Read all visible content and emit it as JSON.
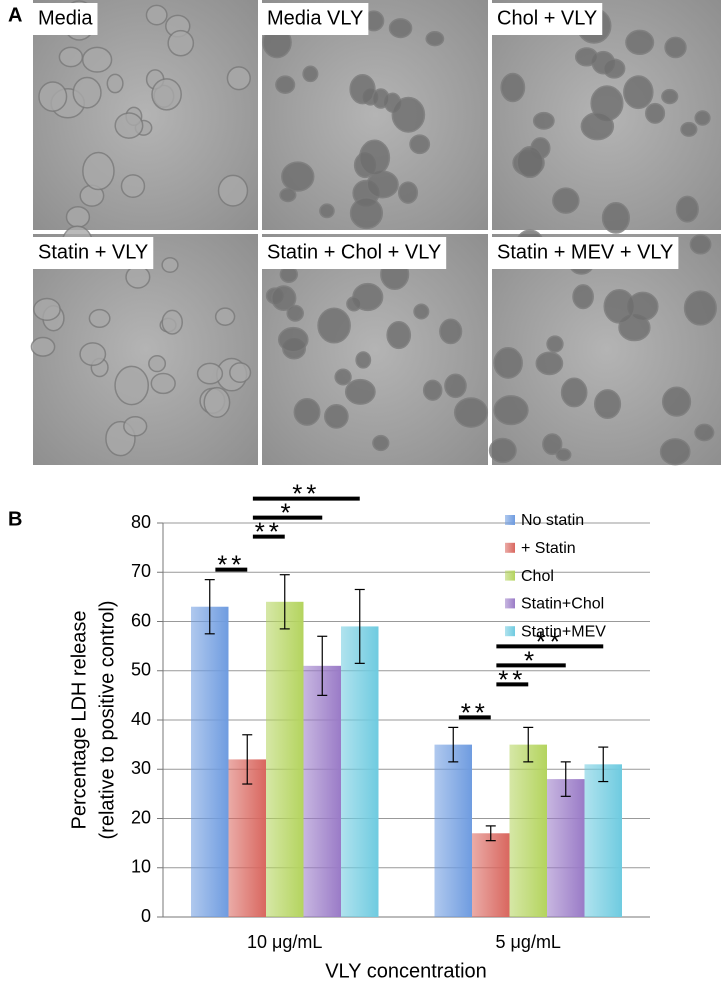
{
  "panel_a": {
    "label": "A",
    "images": [
      "Media",
      "Media VLY",
      "Chol + VLY",
      "Statin + VLY",
      "Statin + Chol + VLY",
      "Statin + MEV + VLY"
    ]
  },
  "chart_data": {
    "type": "bar",
    "panel_label": "B",
    "categories": [
      "10 μg/mL",
      "5 μg/mL"
    ],
    "series": [
      {
        "name": "No statin",
        "color": "#6f9ce0",
        "values": [
          63,
          35
        ],
        "errors": [
          5.5,
          3.5
        ]
      },
      {
        "name": "+ Statin",
        "color": "#d9675f",
        "values": [
          32,
          17
        ],
        "errors": [
          5,
          1.5
        ]
      },
      {
        "name": "Chol",
        "color": "#b4d45e",
        "values": [
          64,
          35
        ],
        "errors": [
          5.5,
          3.5
        ]
      },
      {
        "name": "Statin+Chol",
        "color": "#9a7bc7",
        "values": [
          51,
          28
        ],
        "errors": [
          6,
          3.5
        ]
      },
      {
        "name": "Statin+MEV",
        "color": "#6fcbe0",
        "values": [
          59,
          31
        ],
        "errors": [
          7.5,
          3.5
        ]
      }
    ],
    "ylim": [
      0,
      80
    ],
    "yticks": [
      0,
      10,
      20,
      30,
      40,
      50,
      60,
      70,
      80
    ],
    "grid": true,
    "ylabel": [
      "Percentage LDH release",
      "(relative to positive control)"
    ],
    "xlabel": "VLY concentration",
    "legend": "top-right",
    "annotations": [
      {
        "text": "**",
        "category": 0,
        "from": 0,
        "to": 1
      },
      {
        "text": "**",
        "category": 0,
        "from": 1,
        "to": 2
      },
      {
        "text": "*",
        "category": 0,
        "from": 1,
        "to": 3
      },
      {
        "text": "**",
        "category": 0,
        "from": 1,
        "to": 4
      },
      {
        "text": "**",
        "category": 1,
        "from": 0,
        "to": 1
      },
      {
        "text": "**",
        "category": 1,
        "from": 1,
        "to": 2
      },
      {
        "text": "*",
        "category": 1,
        "from": 1,
        "to": 3
      },
      {
        "text": "**",
        "category": 1,
        "from": 1,
        "to": 4
      }
    ]
  }
}
